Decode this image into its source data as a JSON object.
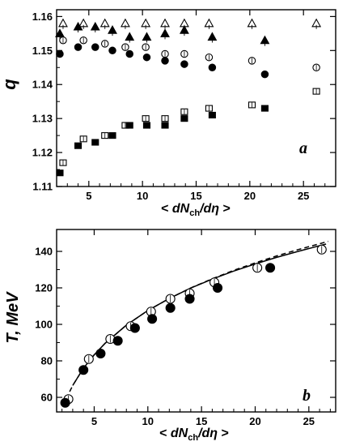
{
  "chart_data": [
    {
      "type": "scatter",
      "panel_label": "a",
      "ylabel": "q",
      "xlabel": {
        "pre": "< ",
        "d1": "dN",
        "sub": "ch",
        "mid": "/d",
        "eta": "η",
        "post": " >"
      },
      "xlim": [
        2,
        28
      ],
      "ylim": [
        1.11,
        1.162
      ],
      "xticks": [
        5,
        10,
        15,
        20,
        25
      ],
      "yticks": [
        1.11,
        1.12,
        1.13,
        1.14,
        1.15,
        1.16
      ],
      "ytick_labels": [
        "1.11",
        "1.12",
        "1.13",
        "1.14",
        "1.15",
        "1.16"
      ],
      "grid": false,
      "series": [
        {
          "marker": "triangle-open",
          "x": [
            2.6,
            4.5,
            6.5,
            8.4,
            10.3,
            12.1,
            13.9,
            16.2,
            20.2,
            26.2
          ],
          "y": [
            1.158,
            1.158,
            1.158,
            1.158,
            1.158,
            1.158,
            1.158,
            1.158,
            1.158,
            1.158
          ]
        },
        {
          "marker": "triangle-filled",
          "x": [
            2.3,
            4.0,
            5.6,
            7.2,
            8.8,
            10.4,
            12.1,
            13.9,
            16.5,
            21.4
          ],
          "y": [
            1.155,
            1.157,
            1.157,
            1.156,
            1.154,
            1.154,
            1.155,
            1.156,
            1.154,
            1.153
          ]
        },
        {
          "marker": "circle-open",
          "x": [
            2.6,
            4.5,
            6.5,
            8.4,
            10.3,
            12.1,
            13.9,
            16.2,
            20.2,
            26.2
          ],
          "y": [
            1.153,
            1.153,
            1.152,
            1.151,
            1.151,
            1.149,
            1.149,
            1.148,
            1.147,
            1.145
          ]
        },
        {
          "marker": "circle-filled",
          "x": [
            2.3,
            4.0,
            5.6,
            7.2,
            8.8,
            10.4,
            12.1,
            13.9,
            16.5,
            21.4
          ],
          "y": [
            1.149,
            1.151,
            1.151,
            1.15,
            1.149,
            1.148,
            1.147,
            1.146,
            1.145,
            1.143
          ]
        },
        {
          "marker": "square-open",
          "x": [
            2.6,
            4.5,
            6.5,
            8.4,
            10.3,
            12.1,
            13.9,
            16.2,
            20.2,
            26.2
          ],
          "y": [
            1.117,
            1.124,
            1.125,
            1.128,
            1.13,
            1.13,
            1.132,
            1.133,
            1.134,
            1.138
          ]
        },
        {
          "marker": "square-filled",
          "x": [
            2.3,
            4.0,
            5.6,
            7.2,
            8.8,
            10.4,
            12.1,
            13.9,
            16.5,
            21.4
          ],
          "y": [
            1.114,
            1.122,
            1.123,
            1.125,
            1.128,
            1.128,
            1.128,
            1.13,
            1.131,
            1.133
          ]
        }
      ]
    },
    {
      "type": "scatter",
      "panel_label": "b",
      "ylabel": "T, MeV",
      "xlabel": {
        "pre": "< ",
        "d1": "dN",
        "sub": "ch",
        "mid": "/d",
        "eta": "η",
        "post": " >"
      },
      "xlim": [
        1.5,
        27.5
      ],
      "ylim": [
        52,
        152
      ],
      "xticks": [
        5,
        10,
        15,
        20,
        25
      ],
      "yticks": [
        60,
        80,
        100,
        120,
        140
      ],
      "grid": false,
      "series": [
        {
          "marker": "circle-open",
          "x": [
            2.6,
            4.5,
            6.5,
            8.4,
            10.3,
            12.1,
            13.9,
            16.2,
            20.2,
            26.2
          ],
          "y": [
            59,
            81,
            92,
            99,
            107,
            114,
            117,
            123,
            131,
            141
          ]
        },
        {
          "marker": "circle-filled",
          "x": [
            2.3,
            4.0,
            5.6,
            7.2,
            8.8,
            10.4,
            12.1,
            13.9,
            16.5,
            21.4
          ],
          "y": [
            57,
            75,
            84,
            91,
            98,
            103,
            109,
            114,
            120,
            131
          ]
        }
      ],
      "curves": [
        {
          "style": "solid",
          "x": [
            3,
            4,
            5,
            6,
            8,
            10,
            12,
            14,
            16,
            18,
            20,
            22,
            24,
            26,
            26.6
          ],
          "y": [
            66.5,
            76,
            83.3,
            89.5,
            99.6,
            107.6,
            114.2,
            119.9,
            124.8,
            129.2,
            133.1,
            136.7,
            140,
            143.1,
            144
          ]
        },
        {
          "style": "dashed",
          "x": [
            2.1,
            2.5,
            3,
            4,
            5,
            6,
            8,
            10,
            12,
            14,
            16,
            18,
            20,
            22,
            24,
            26,
            26.8
          ],
          "y": [
            55,
            60.6,
            66.5,
            76,
            83.3,
            89.5,
            99.6,
            107.6,
            114.2,
            120,
            125,
            129.6,
            133.7,
            137.5,
            141,
            144.2,
            145.5
          ]
        }
      ]
    }
  ]
}
